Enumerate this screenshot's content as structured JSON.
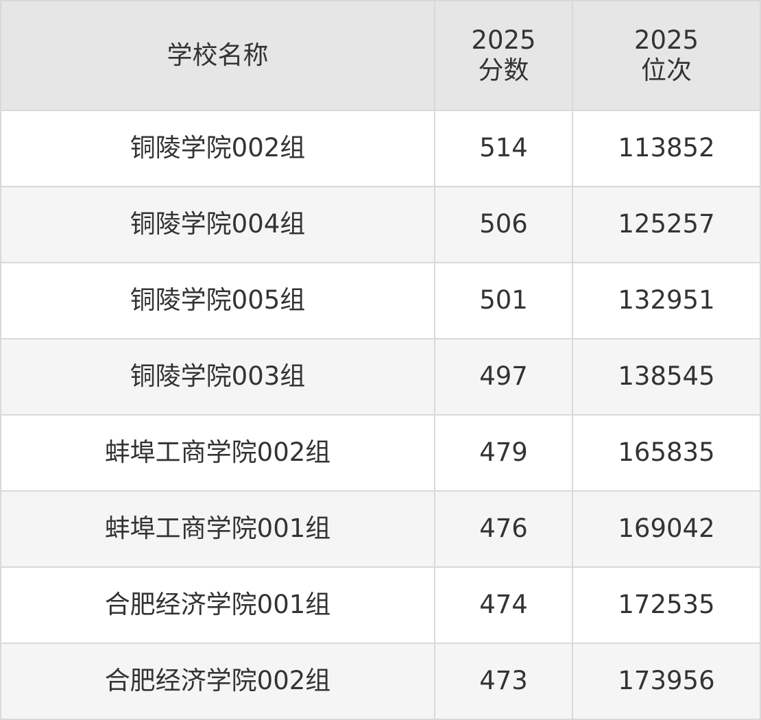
{
  "table": {
    "header": [
      "学校名称",
      "2025\n分数",
      "2025\n位次"
    ],
    "rows": [
      [
        "铜陵学院002组",
        514,
        113852
      ],
      [
        "铜陵学院004组",
        506,
        125257
      ],
      [
        "铜陵学院005组",
        501,
        132951
      ],
      [
        "铜陵学院003组",
        497,
        138545
      ],
      [
        "蚌埠工商学院002组",
        479,
        165835
      ],
      [
        "蚌埠工商学院001组",
        476,
        169042
      ],
      [
        "合肥经济学院001组",
        474,
        172535
      ],
      [
        "合肥经济学院002组",
        473,
        173956
      ]
    ]
  }
}
